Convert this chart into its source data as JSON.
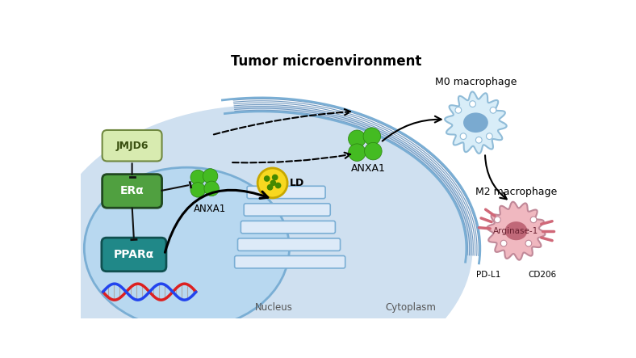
{
  "title": "Tumor microenvironment",
  "bg_color": "#ffffff",
  "cytoplasm_color": "#cfe0f0",
  "nucleus_color": "#b8d4ec",
  "cell_membrane_color": "#7aaed4",
  "cell_membrane_stripe1": "#a8c8e8",
  "cell_membrane_stripe2": "#7098c0",
  "er_fill": "#e8f0f8",
  "er_stroke": "#90b8d8",
  "jmjd6_box_color": "#d8ebb0",
  "jmjd6_box_edge": "#708840",
  "jmjd6_text": "#3a5010",
  "era_box_color": "#50a040",
  "era_box_edge": "#204820",
  "era_text": "#ffffff",
  "ppara_box_color": "#208888",
  "ppara_box_edge": "#105050",
  "ppara_text": "#ffffff",
  "anxa1_green": "#44bb22",
  "anxa1_edge": "#2a8010",
  "ld_yellow": "#f8d820",
  "ld_edge": "#c8a800",
  "ld_dots": "#448800",
  "m0_body": "#c8dff0",
  "m0_body_edge": "#90bcd8",
  "m0_nucleus": "#6090c0",
  "m2_body": "#f0b8c0",
  "m2_body_edge": "#c08898",
  "m2_nucleus": "#c06070",
  "m2_spike": "#d07080",
  "dna_red": "#dd2020",
  "dna_blue": "#2244ee",
  "arrow_color": "#111111",
  "inhibit_color": "#111111",
  "label_nucleus": "Nucleus",
  "label_cytoplasm": "Cytoplasm",
  "label_m0": "M0 macrophage",
  "label_m2": "M2 macrophage",
  "label_anxa1_ext": "ANXA1",
  "label_anxa1_int": "ANXA1",
  "label_ld": "LD",
  "label_jmjd6": "JMJD6",
  "label_era": "ERα",
  "label_ppara": "PPARα",
  "label_arginase": "Arginase-1",
  "label_pdl1": "PD-L1",
  "label_cd206": "CD206"
}
